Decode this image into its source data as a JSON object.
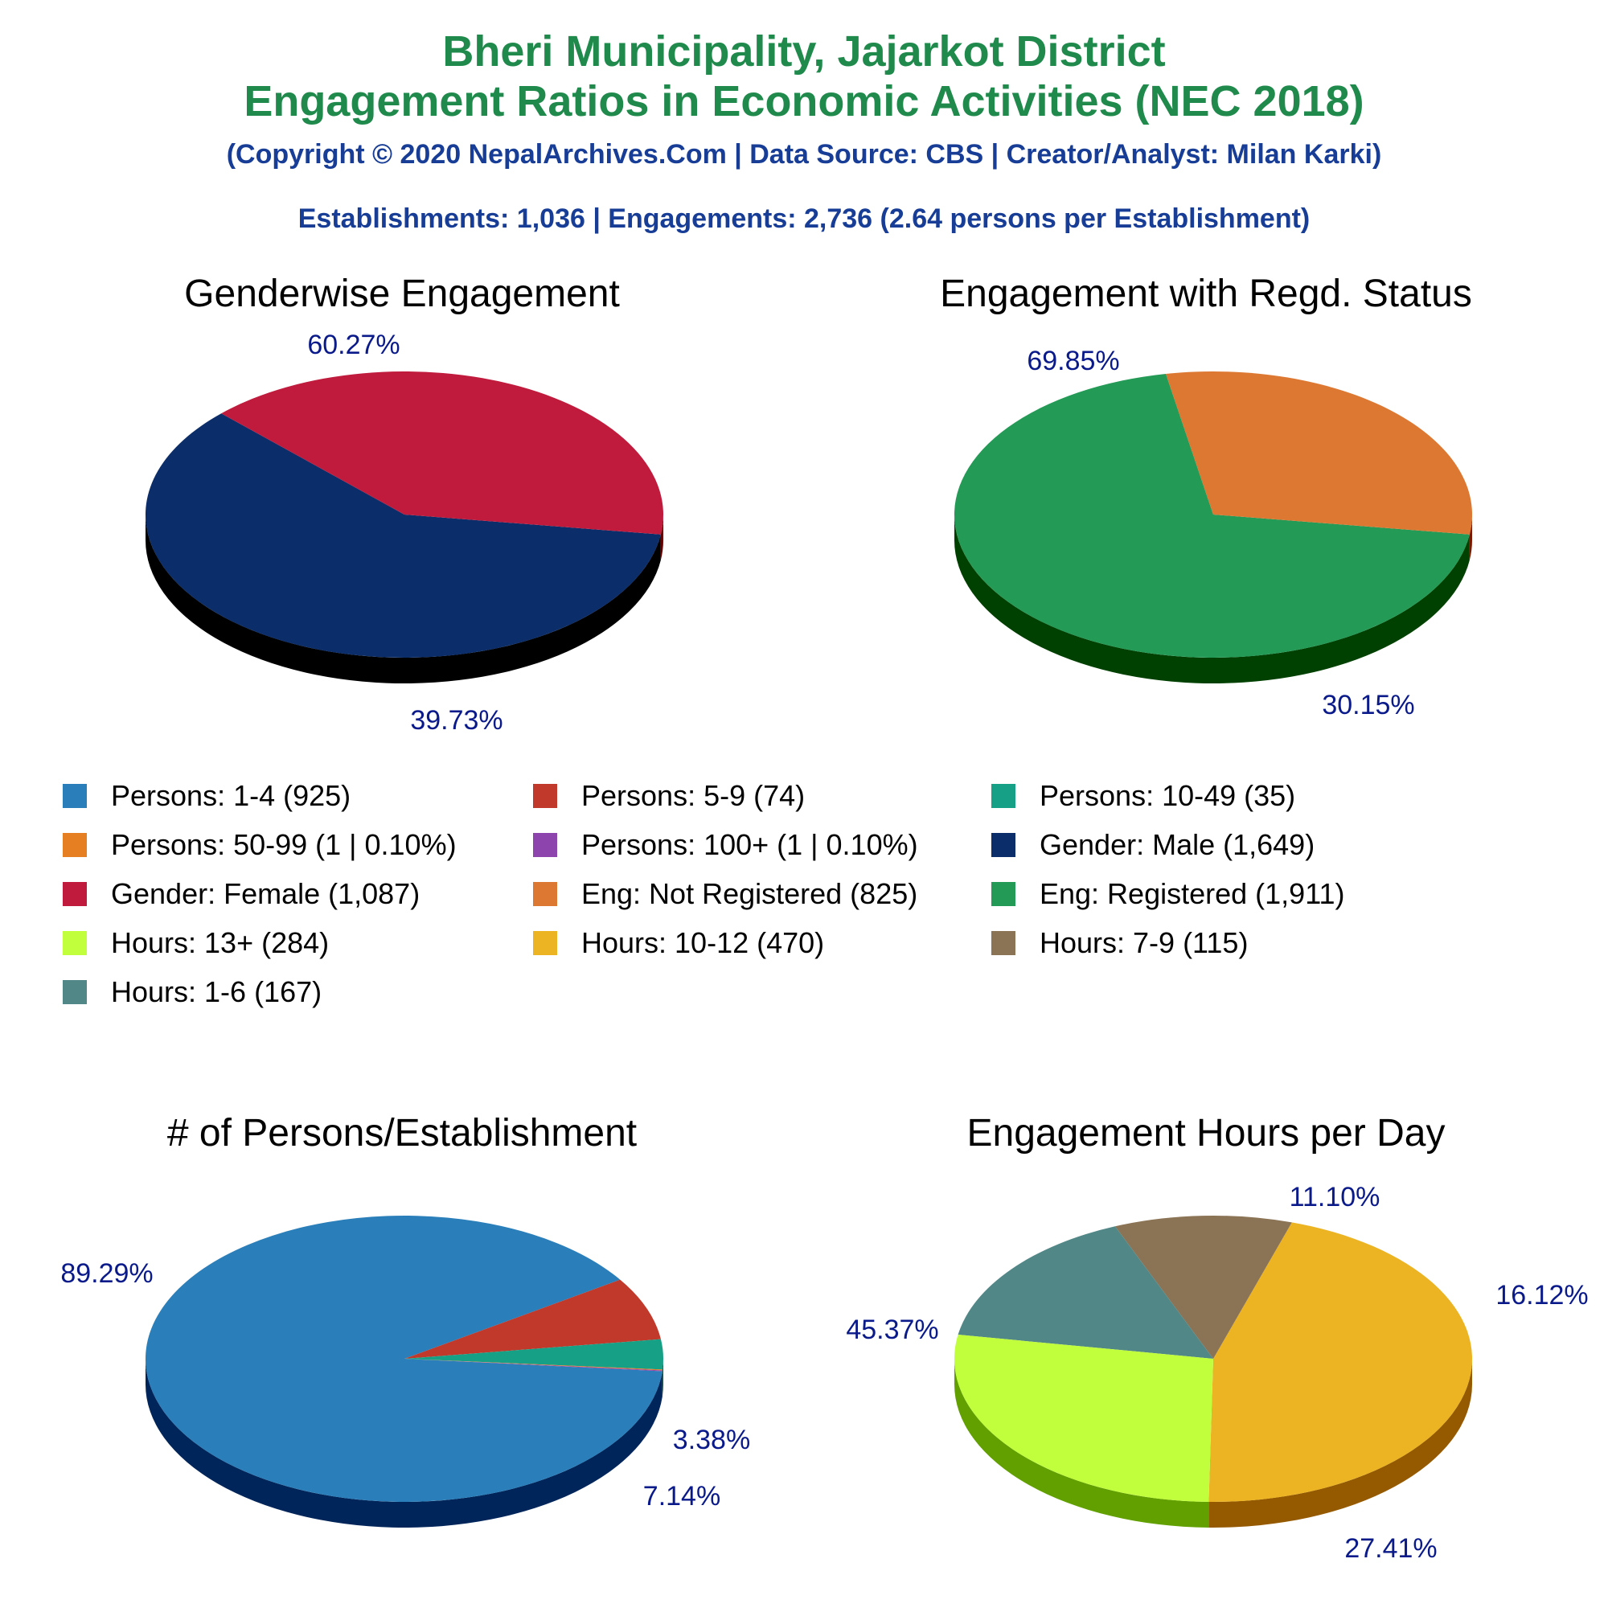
{
  "header": {
    "title_line1": "Bheri Municipality, Jajarkot District",
    "title_line2": "Engagement Ratios in Economic Activities (NEC 2018)",
    "copyright": "(Copyright © 2020 NepalArchives.Com | Data Source: CBS | Creator/Analyst: Milan Karki)",
    "summary": "Establishments: 1,036 | Engagements: 2,736 (2.64 persons per Establishment)"
  },
  "legend": [
    {
      "label": "Persons: 1-4 (925)",
      "color": "#2a7fba"
    },
    {
      "label": "Persons: 5-9 (74)",
      "color": "#c0392b"
    },
    {
      "label": "Persons: 10-49 (35)",
      "color": "#16a085"
    },
    {
      "label": "Persons: 50-99 (1 | 0.10%)",
      "color": "#e67e22"
    },
    {
      "label": "Persons: 100+ (1 | 0.10%)",
      "color": "#8e44ad"
    },
    {
      "label": "Gender: Male (1,649)",
      "color": "#0b2d69"
    },
    {
      "label": "Gender: Female (1,087)",
      "color": "#c01b3d"
    },
    {
      "label": "Eng: Not Registered (825)",
      "color": "#dd7833"
    },
    {
      "label": "Eng: Registered (1,911)",
      "color": "#239a56"
    },
    {
      "label": "Hours: 13+ (284)",
      "color": "#c1ff3d"
    },
    {
      "label": "Hours: 10-12 (470)",
      "color": "#ecb323"
    },
    {
      "label": "Hours: 7-9 (115)",
      "color": "#8b7355"
    },
    {
      "label": "Hours: 1-6 (167)",
      "color": "#528787"
    }
  ],
  "chart_data": [
    {
      "type": "pie",
      "title": "Genderwise Engagement",
      "categories": [
        "Gender: Male",
        "Gender: Female"
      ],
      "values": [
        1649,
        1087
      ],
      "percent_labels": [
        "60.27%",
        "39.73%"
      ],
      "colors": [
        "#0b2d69",
        "#c01b3d"
      ],
      "side_colors": [
        "#000000",
        "#650000"
      ]
    },
    {
      "type": "pie",
      "title": "Engagement with Regd. Status",
      "categories": [
        "Eng: Registered",
        "Eng: Not Registered"
      ],
      "values": [
        1911,
        825
      ],
      "percent_labels": [
        "69.85%",
        "30.15%"
      ],
      "colors": [
        "#239a56",
        "#dd7833"
      ],
      "side_colors": [
        "#004000",
        "#7b1800"
      ]
    },
    {
      "type": "pie",
      "title": "# of Persons/Establishment",
      "categories": [
        "Persons: 1-4",
        "Persons: 5-9",
        "Persons: 10-49",
        "Persons: 50-99",
        "Persons: 100+"
      ],
      "values": [
        925,
        74,
        35,
        1,
        1
      ],
      "percent_labels": [
        "89.29%",
        "7.14%",
        "3.38%",
        "",
        ""
      ],
      "colors": [
        "#2a7fba",
        "#c0392b",
        "#16a085",
        "#e67e22",
        "#8e44ad"
      ],
      "side_colors": [
        "#00255a",
        "#650000",
        "#004030",
        "#803000",
        "#401060"
      ]
    },
    {
      "type": "pie",
      "title": "Engagement Hours per Day",
      "categories": [
        "Hours: 10-12",
        "Hours: 7-9",
        "Hours: 1-6",
        "Hours: 13+"
      ],
      "values": [
        470,
        115,
        167,
        284
      ],
      "percent_labels": [
        "45.37%",
        "11.10%",
        "16.12%",
        "27.41%"
      ],
      "colors": [
        "#ecb323",
        "#8b7355",
        "#528787",
        "#c1ff3d"
      ],
      "side_colors": [
        "#955a00",
        "#4a3a25",
        "#204545",
        "#62a000"
      ]
    }
  ]
}
